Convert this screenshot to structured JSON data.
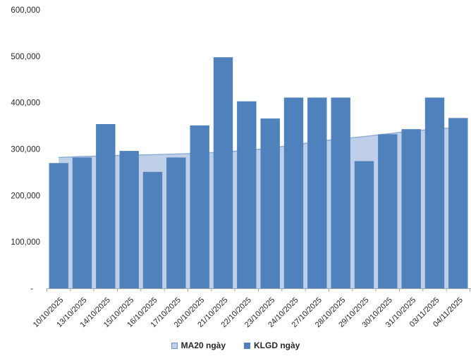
{
  "chart_data": {
    "type": "bar",
    "title": "",
    "xlabel": "",
    "ylabel": "",
    "categories": [
      "10/10/2025",
      "13/10/2025",
      "14/10/2025",
      "15/10/2025",
      "16/10/2025",
      "17/10/2025",
      "20/10/2025",
      "21/10/2025",
      "22/10/2025",
      "23/10/2025",
      "24/10/2025",
      "27/10/2025",
      "28/10/2025",
      "29/10/2025",
      "30/10/2025",
      "31/10/2025",
      "03/11/2025",
      "04/11/2025"
    ],
    "series": [
      {
        "name": "MA20 ngày",
        "type": "area",
        "fill_color": "#BFCFE7",
        "line_color": "#8AABD4",
        "values": [
          282000,
          284000,
          285500,
          287000,
          288000,
          289500,
          291000,
          294000,
          297000,
          302000,
          309000,
          316000,
          322000,
          327000,
          333000,
          339000,
          343000,
          347000
        ]
      },
      {
        "name": "KLGD ngày",
        "type": "bar",
        "fill_color": "#4F81BD",
        "values": [
          270000,
          282000,
          354000,
          296000,
          251000,
          282000,
          351000,
          498000,
          403000,
          366000,
          411000,
          411000,
          411000,
          274000,
          332000,
          343000,
          411000,
          367000
        ]
      }
    ],
    "ylim": [
      0,
      600000
    ],
    "ytick_interval": 100000,
    "yticks": [
      {
        "value": 600000,
        "label": "600,000"
      },
      {
        "value": 500000,
        "label": "500,000"
      },
      {
        "value": 400000,
        "label": "400,000"
      },
      {
        "value": 300000,
        "label": "300,000"
      },
      {
        "value": 200000,
        "label": "200,000"
      },
      {
        "value": 100000,
        "label": "100,000"
      },
      {
        "value": 0,
        "label": "-"
      }
    ],
    "grid": false,
    "legend_position": "bottom",
    "axis_color": "#A6A6A6",
    "text_color": "#262626",
    "x_label_rotation": -45
  }
}
